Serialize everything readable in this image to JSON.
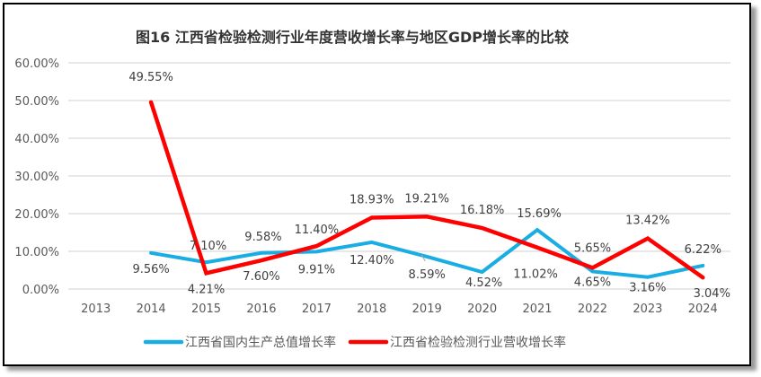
{
  "chart_data": {
    "type": "line",
    "title": "图16  江西省检验检测行业年度营收增长率与地区GDP增长率的比较",
    "xlabel": "",
    "ylabel": "",
    "categories": [
      "2013",
      "2014",
      "2015",
      "2016",
      "2017",
      "2018",
      "2019",
      "2020",
      "2021",
      "2022",
      "2023",
      "2024"
    ],
    "ylim": [
      0,
      60
    ],
    "yticks": [
      "0.00%",
      "10.00%",
      "20.00%",
      "30.00%",
      "40.00%",
      "50.00%",
      "60.00%"
    ],
    "grid": true,
    "legend_position": "bottom",
    "series": [
      {
        "name": "江西省国内生产总值增长率",
        "color": "#1AADE4",
        "values": [
          null,
          9.56,
          7.1,
          9.58,
          9.91,
          12.4,
          8.59,
          4.52,
          15.69,
          4.65,
          3.16,
          6.22
        ],
        "labels": [
          null,
          "9.56%",
          "7.10%",
          "9.58%",
          "9.91%",
          "12.40%",
          "8.59%",
          "4.52%",
          "15.69%",
          "4.65%",
          "3.16%",
          "6.22%"
        ]
      },
      {
        "name": "江西省检验检测行业营收增长率",
        "color": "#FF0000",
        "values": [
          null,
          49.55,
          4.21,
          7.6,
          11.4,
          18.93,
          19.21,
          16.18,
          11.02,
          5.65,
          13.42,
          3.04
        ],
        "labels": [
          null,
          "49.55%",
          "4.21%",
          "7.60%",
          "11.40%",
          "18.93%",
          "19.21%",
          "16.18%",
          "11.02%",
          "5.65%",
          "13.42%",
          "3.04%"
        ]
      }
    ]
  }
}
